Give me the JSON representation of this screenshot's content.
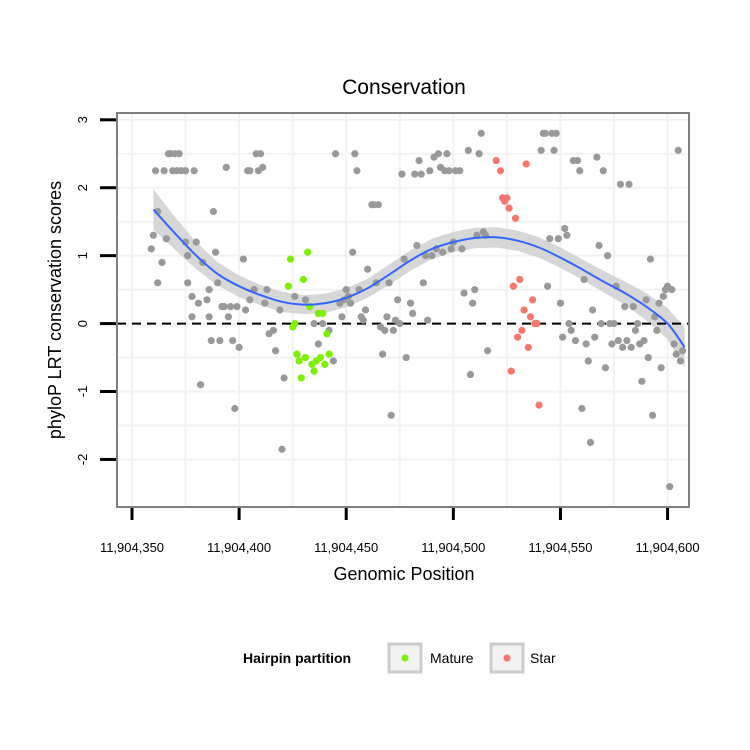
{
  "chart_data": {
    "type": "scatter",
    "title": "Conservation",
    "xlabel": "Genomic Position",
    "ylabel": "phyloP LRT conservation scores",
    "xlim": [
      11904343,
      11904610
    ],
    "ylim": [
      -2.7,
      3.1
    ],
    "x_ticks": [
      11904350,
      11904400,
      11904450,
      11904500,
      11904550,
      11904600
    ],
    "x_tick_labels": [
      "11,904,350",
      "11,904,400",
      "11,904,450",
      "11,904,500",
      "11,904,550",
      "11,904,600"
    ],
    "y_ticks": [
      -2,
      -1,
      0,
      1,
      2,
      3
    ],
    "y_tick_labels": [
      "-2",
      "-1",
      "0",
      "1",
      "2",
      "3"
    ],
    "reference_line": {
      "y": 0,
      "style": "dashed"
    },
    "legend": {
      "title": "Hairpin partition",
      "position": "bottom",
      "entries": [
        {
          "label": "Mature",
          "color": "#7cf000"
        },
        {
          "label": "Star",
          "color": "#f8766d"
        }
      ]
    },
    "colors": {
      "other": "#999999",
      "mature": "#7cf000",
      "star": "#f8766d",
      "smooth_line": "#3366ff",
      "smooth_band": "#d3d3d3",
      "panel_border": "#7f7f7f",
      "grid": "#f2f2f2"
    },
    "series": [
      {
        "name": "Other",
        "points": [
          [
            11904359,
            1.1
          ],
          [
            11904360,
            1.3
          ],
          [
            11904361,
            2.25
          ],
          [
            11904362,
            1.65
          ],
          [
            11904362,
            0.6
          ],
          [
            11904364,
            0.9
          ],
          [
            11904365,
            2.25
          ],
          [
            11904366,
            1.25
          ],
          [
            11904367,
            2.5
          ],
          [
            11904368,
            2.5
          ],
          [
            11904369,
            2.25
          ],
          [
            11904370,
            2.5
          ],
          [
            11904371,
            2.25
          ],
          [
            11904372,
            2.5
          ],
          [
            11904373,
            2.25
          ],
          [
            11904375,
            2.25
          ],
          [
            11904375,
            1.2
          ],
          [
            11904376,
            1.0
          ],
          [
            11904376,
            0.6
          ],
          [
            11904378,
            0.4
          ],
          [
            11904378,
            0.1
          ],
          [
            11904379,
            2.25
          ],
          [
            11904380,
            1.2
          ],
          [
            11904381,
            0.3
          ],
          [
            11904382,
            -0.9
          ],
          [
            11904383,
            0.9
          ],
          [
            11904385,
            0.35
          ],
          [
            11904386,
            0.5
          ],
          [
            11904386,
            0.1
          ],
          [
            11904387,
            -0.25
          ],
          [
            11904388,
            1.65
          ],
          [
            11904389,
            1.05
          ],
          [
            11904390,
            0.6
          ],
          [
            11904391,
            -0.25
          ],
          [
            11904392,
            0.25
          ],
          [
            11904393,
            0.25
          ],
          [
            11904394,
            2.3
          ],
          [
            11904395,
            0.1
          ],
          [
            11904396,
            0.25
          ],
          [
            11904397,
            -0.25
          ],
          [
            11904398,
            -1.25
          ],
          [
            11904399,
            0.25
          ],
          [
            11904400,
            -0.35
          ],
          [
            11904402,
            0.95
          ],
          [
            11904403,
            0.2
          ],
          [
            11904404,
            2.25
          ],
          [
            11904405,
            2.25
          ],
          [
            11904405,
            0.35
          ],
          [
            11904407,
            0.5
          ],
          [
            11904408,
            2.5
          ],
          [
            11904409,
            2.25
          ],
          [
            11904410,
            2.5
          ],
          [
            11904411,
            2.3
          ],
          [
            11904412,
            0.3
          ],
          [
            11904413,
            0.5
          ],
          [
            11904414,
            -0.15
          ],
          [
            11904416,
            -0.1
          ],
          [
            11904417,
            -0.4
          ],
          [
            11904419,
            0.2
          ],
          [
            11904420,
            -1.85
          ],
          [
            11904421,
            -0.8
          ],
          [
            11904426,
            0.4
          ],
          [
            11904431,
            0.35
          ],
          [
            11904435,
            0.0
          ],
          [
            11904437,
            -0.3
          ],
          [
            11904439,
            0.0
          ],
          [
            11904442,
            -0.1
          ],
          [
            11904444,
            -0.55
          ],
          [
            11904445,
            2.5
          ],
          [
            11904447,
            0.3
          ],
          [
            11904448,
            0.1
          ],
          [
            11904449,
            0.35
          ],
          [
            11904450,
            0.5
          ],
          [
            11904451,
            0.4
          ],
          [
            11904452,
            0.3
          ],
          [
            11904453,
            1.05
          ],
          [
            11904454,
            2.5
          ],
          [
            11904455,
            2.25
          ],
          [
            11904456,
            0.5
          ],
          [
            11904457,
            0.1
          ],
          [
            11904458,
            0.05
          ],
          [
            11904459,
            0.2
          ],
          [
            11904460,
            0.8
          ],
          [
            11904462,
            1.75
          ],
          [
            11904463,
            1.75
          ],
          [
            11904464,
            0.6
          ],
          [
            11904465,
            1.75
          ],
          [
            11904466,
            -0.05
          ],
          [
            11904467,
            -0.45
          ],
          [
            11904468,
            -0.1
          ],
          [
            11904469,
            0.1
          ],
          [
            11904470,
            0.6
          ],
          [
            11904471,
            -1.35
          ],
          [
            11904472,
            -0.1
          ],
          [
            11904473,
            0.05
          ],
          [
            11904474,
            0.35
          ],
          [
            11904475,
            0.0
          ],
          [
            11904476,
            2.2
          ],
          [
            11904477,
            0.95
          ],
          [
            11904478,
            -0.5
          ],
          [
            11904480,
            0.3
          ],
          [
            11904481,
            0.15
          ],
          [
            11904482,
            2.2
          ],
          [
            11904483,
            1.15
          ],
          [
            11904484,
            2.4
          ],
          [
            11904485,
            2.2
          ],
          [
            11904486,
            0.6
          ],
          [
            11904487,
            1.0
          ],
          [
            11904488,
            0.05
          ],
          [
            11904489,
            2.25
          ],
          [
            11904490,
            1.0
          ],
          [
            11904491,
            2.45
          ],
          [
            11904492,
            1.1
          ],
          [
            11904493,
            2.5
          ],
          [
            11904494,
            2.3
          ],
          [
            11904495,
            1.05
          ],
          [
            11904496,
            2.25
          ],
          [
            11904497,
            2.5
          ],
          [
            11904498,
            2.25
          ],
          [
            11904499,
            1.1
          ],
          [
            11904500,
            1.2
          ],
          [
            11904501,
            2.25
          ],
          [
            11904503,
            2.25
          ],
          [
            11904504,
            1.1
          ],
          [
            11904505,
            0.45
          ],
          [
            11904507,
            2.55
          ],
          [
            11904508,
            -0.75
          ],
          [
            11904509,
            0.3
          ],
          [
            11904510,
            0.5
          ],
          [
            11904511,
            1.3
          ],
          [
            11904512,
            2.5
          ],
          [
            11904513,
            2.8
          ],
          [
            11904514,
            1.35
          ],
          [
            11904515,
            1.3
          ],
          [
            11904516,
            -0.4
          ],
          [
            11904541,
            2.55
          ],
          [
            11904542,
            2.8
          ],
          [
            11904543,
            2.8
          ],
          [
            11904544,
            0.55
          ],
          [
            11904545,
            1.25
          ],
          [
            11904546,
            2.8
          ],
          [
            11904547,
            2.55
          ],
          [
            11904548,
            2.8
          ],
          [
            11904549,
            1.25
          ],
          [
            11904550,
            0.3
          ],
          [
            11904551,
            -0.2
          ],
          [
            11904552,
            1.4
          ],
          [
            11904553,
            1.3
          ],
          [
            11904554,
            0.0
          ],
          [
            11904555,
            -0.1
          ],
          [
            11904556,
            2.4
          ],
          [
            11904557,
            -0.25
          ],
          [
            11904558,
            2.4
          ],
          [
            11904559,
            2.25
          ],
          [
            11904560,
            -1.25
          ],
          [
            11904561,
            0.65
          ],
          [
            11904562,
            -0.3
          ],
          [
            11904563,
            -0.55
          ],
          [
            11904564,
            -1.75
          ],
          [
            11904565,
            0.2
          ],
          [
            11904566,
            -0.2
          ],
          [
            11904567,
            2.45
          ],
          [
            11904568,
            1.15
          ],
          [
            11904569,
            0.0
          ],
          [
            11904570,
            2.25
          ],
          [
            11904571,
            -0.65
          ],
          [
            11904572,
            1.0
          ],
          [
            11904573,
            0.0
          ],
          [
            11904574,
            -0.3
          ],
          [
            11904575,
            0.0
          ],
          [
            11904576,
            0.55
          ],
          [
            11904577,
            -0.25
          ],
          [
            11904578,
            2.05
          ],
          [
            11904579,
            -0.35
          ],
          [
            11904580,
            0.25
          ],
          [
            11904581,
            -0.25
          ],
          [
            11904582,
            2.05
          ],
          [
            11904583,
            -0.35
          ],
          [
            11904584,
            0.25
          ],
          [
            11904585,
            -0.1
          ],
          [
            11904586,
            0.0
          ],
          [
            11904587,
            -0.3
          ],
          [
            11904588,
            -0.85
          ],
          [
            11904589,
            -0.25
          ],
          [
            11904590,
            0.35
          ],
          [
            11904591,
            -0.5
          ],
          [
            11904592,
            0.95
          ],
          [
            11904593,
            -1.35
          ],
          [
            11904594,
            0.1
          ],
          [
            11904595,
            -0.1
          ],
          [
            11904596,
            0.3
          ],
          [
            11904597,
            -0.65
          ],
          [
            11904598,
            0.4
          ],
          [
            11904599,
            0.5
          ],
          [
            11904600,
            0.55
          ],
          [
            11904601,
            -2.4
          ],
          [
            11904602,
            0.5
          ],
          [
            11904603,
            -0.3
          ],
          [
            11904604,
            -0.45
          ],
          [
            11904605,
            2.55
          ],
          [
            11904606,
            -0.55
          ],
          [
            11904607,
            -0.4
          ]
        ]
      },
      {
        "name": "Mature",
        "points": [
          [
            11904423,
            0.55
          ],
          [
            11904424,
            0.95
          ],
          [
            11904425,
            -0.05
          ],
          [
            11904426,
            0.0
          ],
          [
            11904427,
            -0.45
          ],
          [
            11904428,
            -0.55
          ],
          [
            11904429,
            -0.8
          ],
          [
            11904430,
            0.65
          ],
          [
            11904431,
            -0.5
          ],
          [
            11904432,
            1.05
          ],
          [
            11904433,
            0.25
          ],
          [
            11904434,
            -0.6
          ],
          [
            11904435,
            -0.7
          ],
          [
            11904436,
            -0.55
          ],
          [
            11904437,
            0.15
          ],
          [
            11904438,
            -0.5
          ],
          [
            11904439,
            0.15
          ],
          [
            11904440,
            -0.6
          ],
          [
            11904441,
            -0.15
          ],
          [
            11904442,
            -0.45
          ]
        ]
      },
      {
        "name": "Star",
        "points": [
          [
            11904520,
            2.4
          ],
          [
            11904522,
            2.25
          ],
          [
            11904523,
            1.85
          ],
          [
            11904524,
            1.8
          ],
          [
            11904525,
            1.85
          ],
          [
            11904526,
            1.7
          ],
          [
            11904527,
            -0.7
          ],
          [
            11904528,
            0.55
          ],
          [
            11904529,
            1.55
          ],
          [
            11904530,
            -0.2
          ],
          [
            11904531,
            0.65
          ],
          [
            11904532,
            -0.1
          ],
          [
            11904533,
            0.2
          ],
          [
            11904534,
            2.35
          ],
          [
            11904535,
            -0.35
          ],
          [
            11904536,
            0.1
          ],
          [
            11904537,
            0.35
          ],
          [
            11904538,
            0.0
          ],
          [
            11904539,
            0.0
          ],
          [
            11904540,
            -1.2
          ]
        ]
      },
      {
        "name": "Smooth fit",
        "line": [
          [
            11904360,
            1.68
          ],
          [
            11904370,
            1.33
          ],
          [
            11904380,
            1.0
          ],
          [
            11904390,
            0.73
          ],
          [
            11904400,
            0.55
          ],
          [
            11904410,
            0.42
          ],
          [
            11904420,
            0.32
          ],
          [
            11904430,
            0.28
          ],
          [
            11904440,
            0.3
          ],
          [
            11904450,
            0.38
          ],
          [
            11904460,
            0.52
          ],
          [
            11904470,
            0.72
          ],
          [
            11904480,
            0.93
          ],
          [
            11904490,
            1.1
          ],
          [
            11904500,
            1.2
          ],
          [
            11904510,
            1.26
          ],
          [
            11904520,
            1.27
          ],
          [
            11904530,
            1.22
          ],
          [
            11904540,
            1.12
          ],
          [
            11904550,
            0.97
          ],
          [
            11904560,
            0.8
          ],
          [
            11904570,
            0.62
          ],
          [
            11904580,
            0.45
          ],
          [
            11904590,
            0.25
          ],
          [
            11904600,
            0.0
          ],
          [
            11904608,
            -0.35
          ]
        ],
        "band_half_width": [
          0.3,
          0.24,
          0.2,
          0.17,
          0.16,
          0.15,
          0.15,
          0.14,
          0.14,
          0.14,
          0.14,
          0.15,
          0.15,
          0.15,
          0.15,
          0.15,
          0.15,
          0.15,
          0.15,
          0.15,
          0.15,
          0.16,
          0.17,
          0.2,
          0.23,
          0.3
        ]
      }
    ]
  }
}
